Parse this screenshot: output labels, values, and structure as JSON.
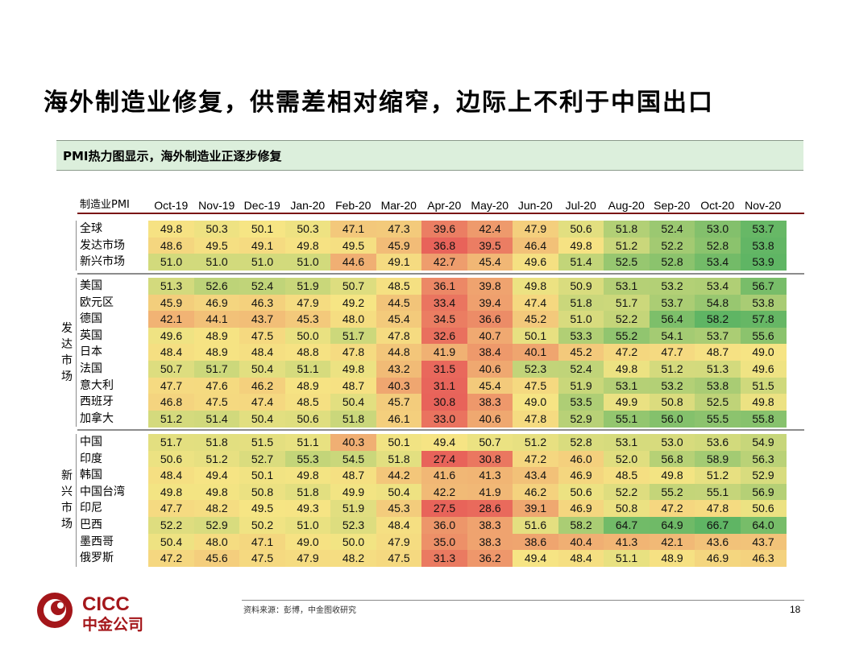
{
  "page": {
    "title": "海外制造业修复，供需差相对缩窄，边际上不利于中国出口",
    "subtitle": "PMI热力图显示，海外制造业正逐步修复",
    "source": "资料来源：彭博，中金图收研究",
    "page_number": "18",
    "logo": {
      "text_en": "CICC",
      "text_cn": "中金公司",
      "color": "#a4161a"
    }
  },
  "chart_data": {
    "type": "heatmap",
    "corner_label": "制造业PMI",
    "columns": [
      "Oct-19",
      "Nov-19",
      "Dec-19",
      "Jan-20",
      "Feb-20",
      "Mar-20",
      "Apr-20",
      "May-20",
      "Jun-20",
      "Jul-20",
      "Aug-20",
      "Sep-20",
      "Oct-20",
      "Nov-20"
    ],
    "color_scale": {
      "low": "#e8635a",
      "mid": "#f6e584",
      "high": "#5fb564"
    },
    "groups": [
      {
        "label": "",
        "rows": [
          {
            "name": "全球",
            "values": [
              49.8,
              50.3,
              50.1,
              50.3,
              47.1,
              47.3,
              39.6,
              42.4,
              47.9,
              50.6,
              51.8,
              52.4,
              53.0,
              53.7
            ]
          },
          {
            "name": "发达市场",
            "values": [
              48.6,
              49.5,
              49.1,
              49.8,
              49.5,
              45.9,
              36.8,
              39.5,
              46.4,
              49.8,
              51.2,
              52.2,
              52.8,
              53.8
            ]
          },
          {
            "name": "新兴市场",
            "values": [
              51.0,
              51.0,
              51.0,
              51.0,
              44.6,
              49.1,
              42.7,
              45.4,
              49.6,
              51.4,
              52.5,
              52.8,
              53.4,
              53.9
            ]
          }
        ]
      },
      {
        "label": "发达市场",
        "rows": [
          {
            "name": "美国",
            "values": [
              51.3,
              52.6,
              52.4,
              51.9,
              50.7,
              48.5,
              36.1,
              39.8,
              49.8,
              50.9,
              53.1,
              53.2,
              53.4,
              56.7
            ]
          },
          {
            "name": "欧元区",
            "values": [
              45.9,
              46.9,
              46.3,
              47.9,
              49.2,
              44.5,
              33.4,
              39.4,
              47.4,
              51.8,
              51.7,
              53.7,
              54.8,
              53.8
            ]
          },
          {
            "name": "德国",
            "values": [
              42.1,
              44.1,
              43.7,
              45.3,
              48.0,
              45.4,
              34.5,
              36.6,
              45.2,
              51.0,
              52.2,
              56.4,
              58.2,
              57.8
            ]
          },
          {
            "name": "英国",
            "values": [
              49.6,
              48.9,
              47.5,
              50.0,
              51.7,
              47.8,
              32.6,
              40.7,
              50.1,
              53.3,
              55.2,
              54.1,
              53.7,
              55.6
            ]
          },
          {
            "name": "日本",
            "values": [
              48.4,
              48.9,
              48.4,
              48.8,
              47.8,
              44.8,
              41.9,
              38.4,
              40.1,
              45.2,
              47.2,
              47.7,
              48.7,
              49.0
            ]
          },
          {
            "name": "法国",
            "values": [
              50.7,
              51.7,
              50.4,
              51.1,
              49.8,
              43.2,
              31.5,
              40.6,
              52.3,
              52.4,
              49.8,
              51.2,
              51.3,
              49.6
            ]
          },
          {
            "name": "意大利",
            "values": [
              47.7,
              47.6,
              46.2,
              48.9,
              48.7,
              40.3,
              31.1,
              45.4,
              47.5,
              51.9,
              53.1,
              53.2,
              53.8,
              51.5
            ]
          },
          {
            "name": "西班牙",
            "values": [
              46.8,
              47.5,
              47.4,
              48.5,
              50.4,
              45.7,
              30.8,
              38.3,
              49.0,
              53.5,
              49.9,
              50.8,
              52.5,
              49.8
            ]
          },
          {
            "name": "加拿大",
            "values": [
              51.2,
              51.4,
              50.4,
              50.6,
              51.8,
              46.1,
              33.0,
              40.6,
              47.8,
              52.9,
              55.1,
              56.0,
              55.5,
              55.8
            ]
          }
        ]
      },
      {
        "label": "新兴市场",
        "rows": [
          {
            "name": "中国",
            "values": [
              51.7,
              51.8,
              51.5,
              51.1,
              40.3,
              50.1,
              49.4,
              50.7,
              51.2,
              52.8,
              53.1,
              53.0,
              53.6,
              54.9
            ]
          },
          {
            "name": "印度",
            "values": [
              50.6,
              51.2,
              52.7,
              55.3,
              54.5,
              51.8,
              27.4,
              30.8,
              47.2,
              46.0,
              52.0,
              56.8,
              58.9,
              56.3
            ]
          },
          {
            "name": "韩国",
            "values": [
              48.4,
              49.4,
              50.1,
              49.8,
              48.7,
              44.2,
              41.6,
              41.3,
              43.4,
              46.9,
              48.5,
              49.8,
              51.2,
              52.9
            ]
          },
          {
            "name": "中国台湾",
            "values": [
              49.8,
              49.8,
              50.8,
              51.8,
              49.9,
              50.4,
              42.2,
              41.9,
              46.2,
              50.6,
              52.2,
              55.2,
              55.1,
              56.9
            ]
          },
          {
            "name": "印尼",
            "values": [
              47.7,
              48.2,
              49.5,
              49.3,
              51.9,
              45.3,
              27.5,
              28.6,
              39.1,
              46.9,
              50.8,
              47.2,
              47.8,
              50.6
            ]
          },
          {
            "name": "巴西",
            "values": [
              52.2,
              52.9,
              50.2,
              51.0,
              52.3,
              48.4,
              36.0,
              38.3,
              51.6,
              58.2,
              64.7,
              64.9,
              66.7,
              64.0
            ]
          },
          {
            "name": "墨西哥",
            "values": [
              50.4,
              48.0,
              47.1,
              49.0,
              50.0,
              47.9,
              35.0,
              38.3,
              38.6,
              40.4,
              41.3,
              42.1,
              43.6,
              43.7
            ]
          },
          {
            "name": "俄罗斯",
            "values": [
              47.2,
              45.6,
              47.5,
              47.9,
              48.2,
              47.5,
              31.3,
              36.2,
              49.4,
              48.4,
              51.1,
              48.9,
              46.9,
              46.3
            ]
          }
        ]
      }
    ]
  }
}
